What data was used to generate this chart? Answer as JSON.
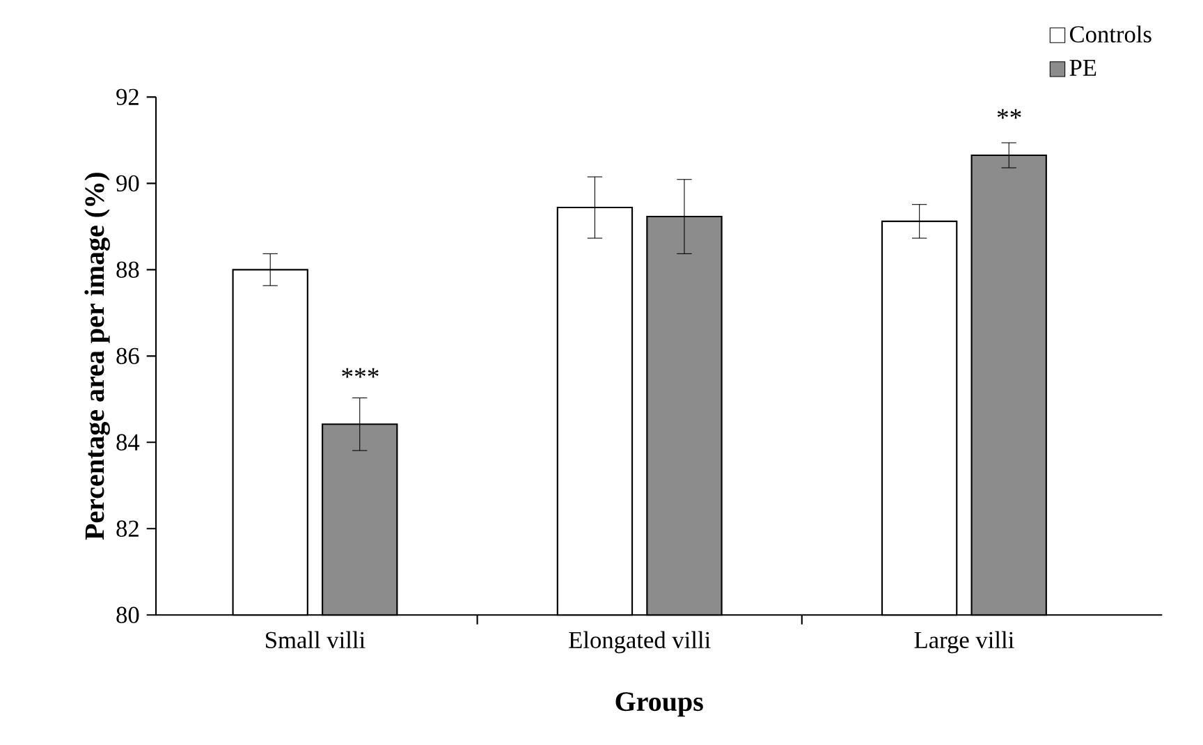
{
  "chart_data": {
    "type": "bar",
    "xlabel": "Groups",
    "ylabel": "Percentage area per image (%)",
    "categories": [
      "Small villi",
      "Elongated villi",
      "Large villi"
    ],
    "series": [
      {
        "name": "Controls",
        "color": "#ffffff",
        "values": [
          88.0,
          89.44,
          89.12
        ],
        "errors": [
          0.37,
          0.71,
          0.39
        ]
      },
      {
        "name": "PE",
        "color": "#8c8c8c",
        "values": [
          84.42,
          89.23,
          90.65
        ],
        "errors": [
          0.61,
          0.86,
          0.29
        ]
      }
    ],
    "ylim": [
      80,
      92
    ],
    "yticks": [
      80,
      82,
      84,
      86,
      88,
      90,
      92
    ],
    "grid": false,
    "legend": "top right",
    "annotations": [
      "***",
      "**"
    ]
  }
}
